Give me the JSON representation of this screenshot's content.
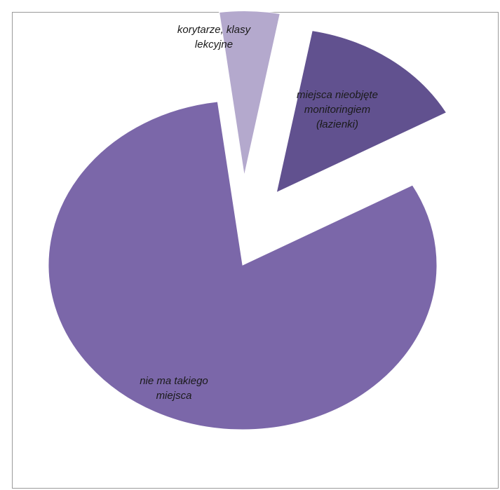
{
  "chart_data": {
    "type": "pie",
    "title": "",
    "legend": "none",
    "slices": [
      {
        "label": "miejsca nieobjęte monitoringiem (łazienki)",
        "label_lines": [
          "miejsca nieobjęte",
          "monitoringiem",
          "(łazienki)"
        ],
        "value": 14,
        "color": "#61518f",
        "exploded": true
      },
      {
        "label": "nie ma takiego miejsca",
        "label_lines": [
          "nie ma takiego",
          "miejsca"
        ],
        "value": 81,
        "color": "#7b67a9",
        "exploded": false
      },
      {
        "label": "korytarze, klasy lekcyjne",
        "label_lines": [
          "korytarze, klasy",
          "lekcyjne"
        ],
        "value": 5,
        "color": "#b4a9cd",
        "exploded": true
      }
    ]
  }
}
